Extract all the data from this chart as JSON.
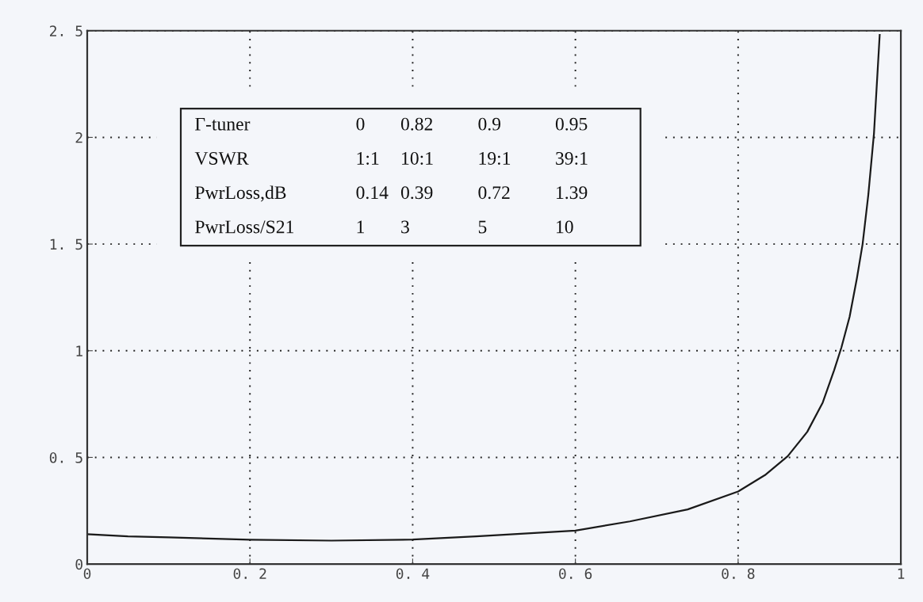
{
  "chart_data": {
    "type": "line",
    "x": [
      0,
      0.05,
      0.1,
      0.2,
      0.3,
      0.4,
      0.478,
      0.6,
      0.667,
      0.738,
      0.8,
      0.833,
      0.861,
      0.885,
      0.904,
      0.918,
      0.927,
      0.937,
      0.946,
      0.953,
      0.96,
      0.967,
      0.974
    ],
    "series": [
      {
        "color": "#1a1a1a",
        "values": [
          0.14,
          0.13,
          0.125,
          0.114,
          0.11,
          0.115,
          0.13,
          0.157,
          0.2,
          0.256,
          0.34,
          0.417,
          0.506,
          0.62,
          0.757,
          0.909,
          1.016,
          1.159,
          1.34,
          1.5,
          1.73,
          2.02,
          2.48
        ]
      }
    ],
    "xlim": [
      0,
      1
    ],
    "ylim": [
      0,
      2.5
    ],
    "xticks": [
      0,
      {
        "value": 0.2,
        "label": "0. 2"
      },
      {
        "value": 0.4,
        "label": "0. 4"
      },
      {
        "value": 0.6,
        "label": "0. 6"
      },
      {
        "value": 0.8,
        "label": "0. 8"
      },
      1
    ],
    "yticks": [
      0,
      {
        "value": 0.5,
        "label": "0. 5"
      },
      1,
      {
        "value": 1.5,
        "label": "1. 5"
      },
      2,
      {
        "value": 2.5,
        "label": "2. 5"
      }
    ],
    "grid": true,
    "line_style": "solid",
    "marker": "none",
    "annotations": [
      "Γ-tuner",
      "0",
      "0.82",
      "0.9",
      "0.95",
      "VSWR",
      "1:1",
      "10:1",
      "19:1",
      "39:1",
      "PwrLoss,dB",
      "0.14",
      "0.39",
      "0.72",
      "1.39",
      "PwrLoss/S21",
      "1",
      "3",
      "5",
      "10"
    ]
  }
}
